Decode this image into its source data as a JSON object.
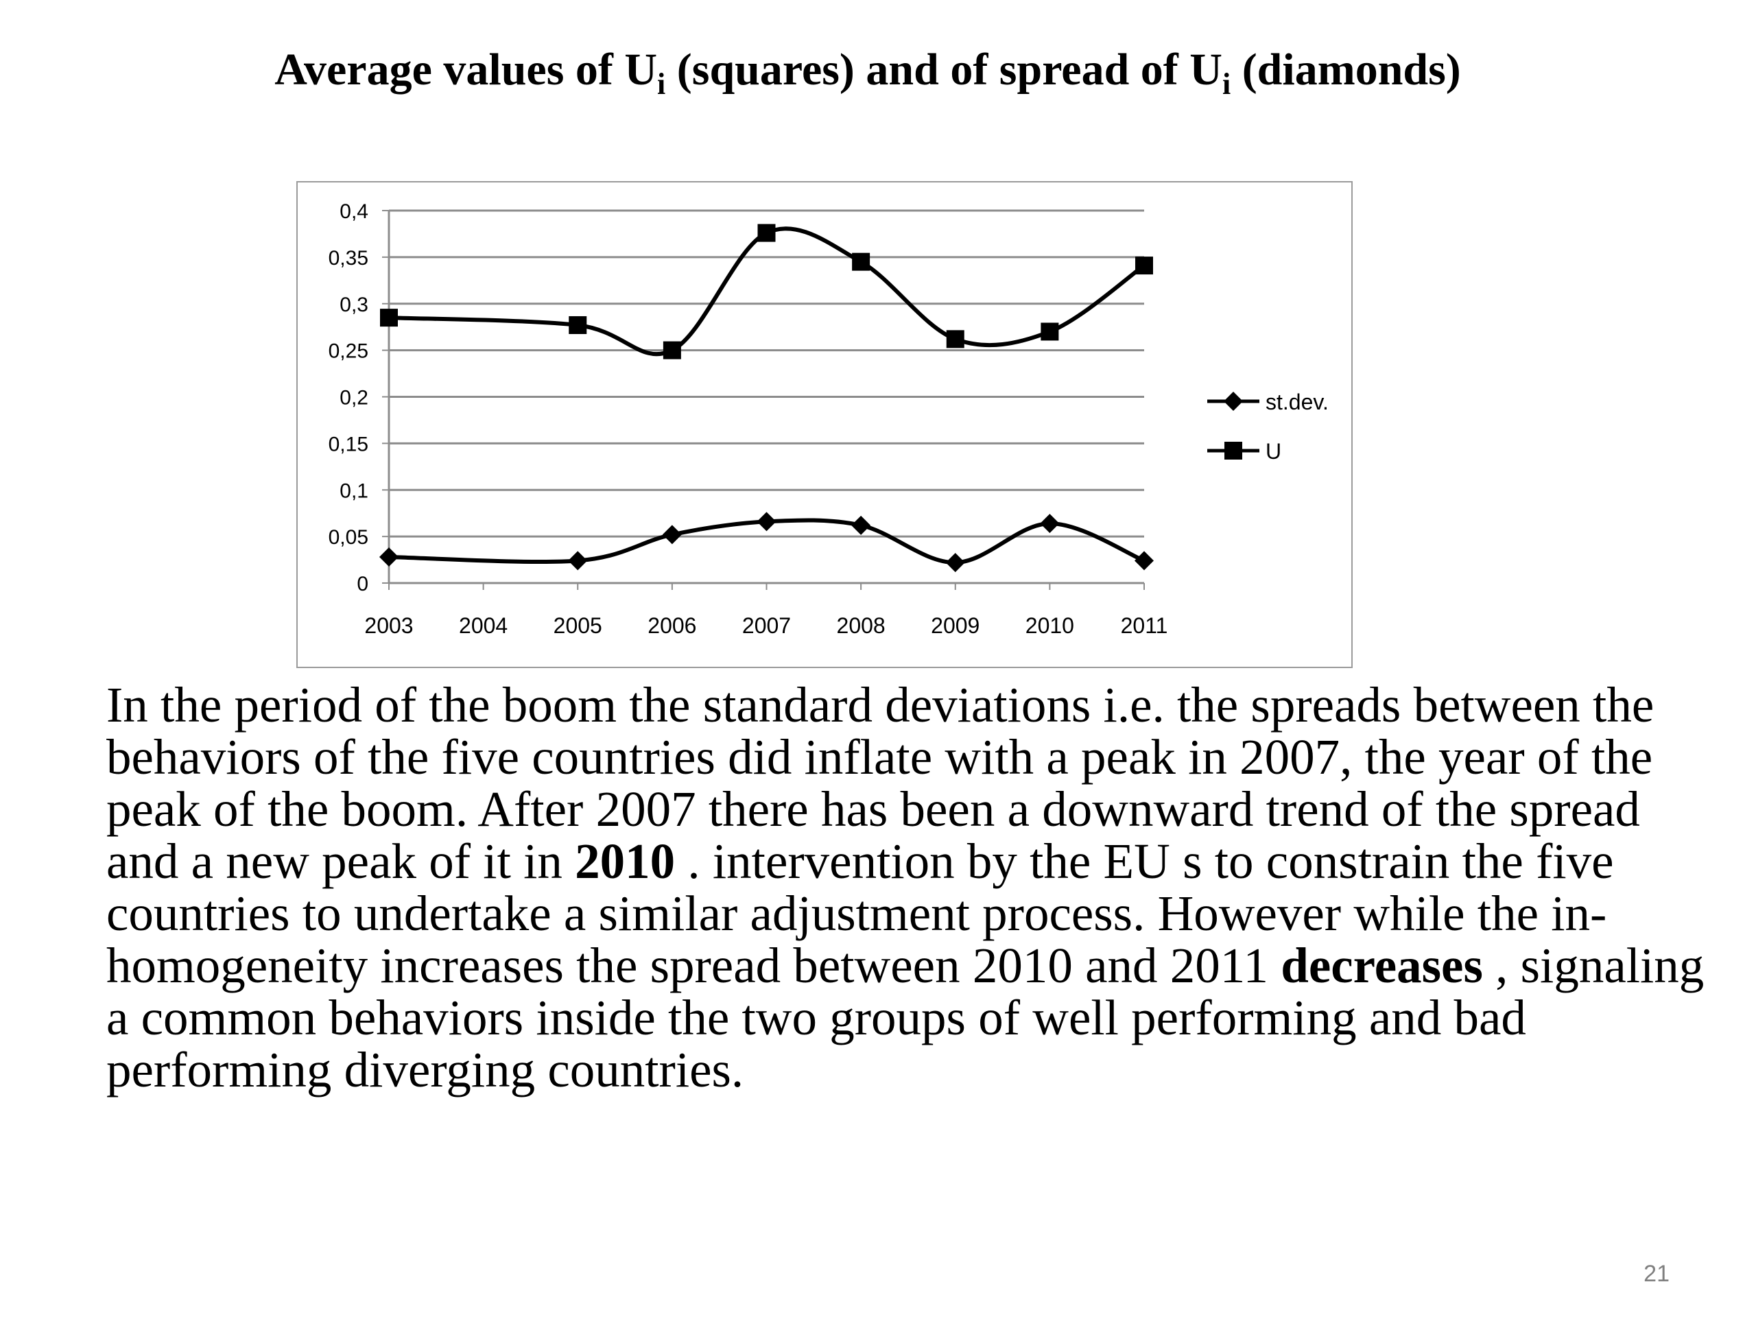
{
  "slide": {
    "title_part1": "Average values of U",
    "title_sub1": "i",
    "title_part2": " (squares) and of spread of U",
    "title_sub2": "i",
    "title_part3": "  (diamonds)",
    "body": {
      "t1": "In the period of the boom the standard deviations i.e. the spreads between the behaviors of the five countries did inflate with a peak in 2007, the year of the peak of the boom. After 2007 there has been a downward trend of the spread and a new peak of it in ",
      "b1": "2010",
      "t2": " . intervention by the EU s to constrain the five countries to undertake a similar adjustment process. However while the in-homogeneity increases the spread between 2010 and 2011 ",
      "b2": "decreases",
      "t3": " , signaling a common behaviors inside the two groups of well performing and bad performing diverging countries."
    },
    "page_number": "21"
  },
  "chart_data": {
    "type": "line",
    "title": "",
    "xlabel": "",
    "ylabel": "",
    "categories": [
      "2003",
      "2004",
      "2005",
      "2006",
      "2007",
      "2008",
      "2009",
      "2010",
      "2011"
    ],
    "y_ticks": [
      "0",
      "0,05",
      "0,1",
      "0,15",
      "0,2",
      "0,25",
      "0,3",
      "0,35",
      "0,4"
    ],
    "ylim": [
      0,
      0.4
    ],
    "grid": true,
    "legend_position": "right",
    "series": [
      {
        "name": "st.dev.",
        "marker": "diamond",
        "color": "#000000",
        "x": [
          "2003",
          "2005",
          "2006",
          "2007",
          "2008",
          "2009",
          "2010",
          "2011"
        ],
        "values": [
          0.028,
          0.024,
          0.052,
          0.066,
          0.062,
          0.022,
          0.064,
          0.024
        ]
      },
      {
        "name": "U",
        "marker": "square",
        "color": "#000000",
        "x": [
          "2003",
          "2005",
          "2006",
          "2007",
          "2008",
          "2009",
          "2010",
          "2011"
        ],
        "values": [
          0.285,
          0.277,
          0.25,
          0.376,
          0.345,
          0.262,
          0.27,
          0.341
        ]
      }
    ]
  }
}
